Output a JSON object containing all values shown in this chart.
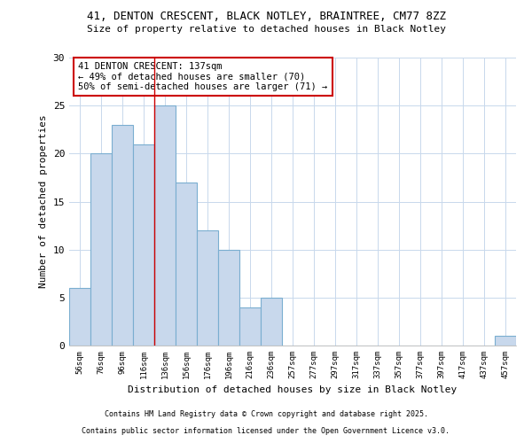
{
  "title1": "41, DENTON CRESCENT, BLACK NOTLEY, BRAINTREE, CM77 8ZZ",
  "title2": "Size of property relative to detached houses in Black Notley",
  "xlabel": "Distribution of detached houses by size in Black Notley",
  "ylabel": "Number of detached properties",
  "categories": [
    "56sqm",
    "76sqm",
    "96sqm",
    "116sqm",
    "136sqm",
    "156sqm",
    "176sqm",
    "196sqm",
    "216sqm",
    "236sqm",
    "257sqm",
    "277sqm",
    "297sqm",
    "317sqm",
    "337sqm",
    "357sqm",
    "377sqm",
    "397sqm",
    "417sqm",
    "437sqm",
    "457sqm"
  ],
  "values": [
    6,
    20,
    23,
    21,
    25,
    17,
    12,
    10,
    4,
    5,
    0,
    0,
    0,
    0,
    0,
    0,
    0,
    0,
    0,
    0,
    1
  ],
  "bar_color": "#c8d8ec",
  "bar_edge_color": "#7aaed0",
  "vline_x_index": 4,
  "vline_color": "#cc0000",
  "annotation_title": "41 DENTON CRESCENT: 137sqm",
  "annotation_line1": "← 49% of detached houses are smaller (70)",
  "annotation_line2": "50% of semi-detached houses are larger (71) →",
  "annotation_box_color": "#ffffff",
  "annotation_box_edge": "#cc0000",
  "ylim": [
    0,
    30
  ],
  "yticks": [
    0,
    5,
    10,
    15,
    20,
    25,
    30
  ],
  "footer1": "Contains HM Land Registry data © Crown copyright and database right 2025.",
  "footer2": "Contains public sector information licensed under the Open Government Licence v3.0.",
  "bg_color": "#ffffff",
  "plot_bg_color": "#ffffff",
  "grid_color": "#c8d8ec"
}
